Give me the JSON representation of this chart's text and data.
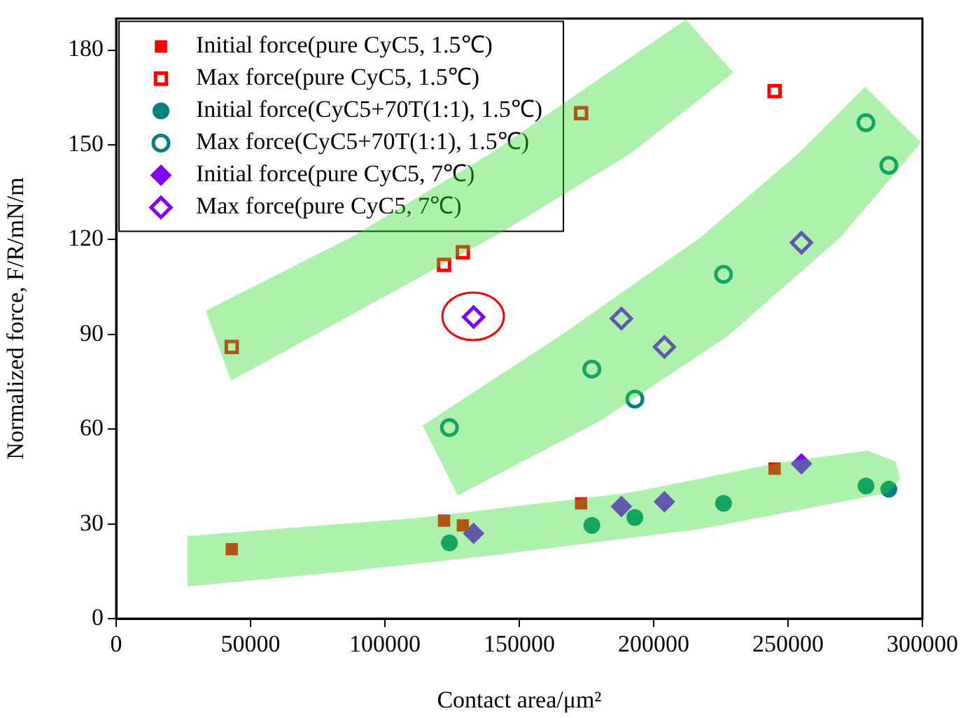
{
  "chart_data": {
    "type": "scatter",
    "xlabel": "Contact area/μm²",
    "ylabel": "Normalized force, F/R/mN/m",
    "xlim": [
      0,
      300000
    ],
    "xticks": [
      0,
      50000,
      100000,
      150000,
      200000,
      250000,
      300000
    ],
    "ylim": [
      0,
      190
    ],
    "yticks": [
      0,
      30,
      60,
      90,
      120,
      150,
      180
    ],
    "grid": false,
    "legend": "top left",
    "series": [
      {
        "name": "Initial force(pure CyC5, 1.5℃)",
        "color": "#ff0000",
        "marker": "square",
        "x": [
          43000,
          122000,
          129000,
          173000,
          245000
        ],
        "values": [
          22,
          31,
          29.5,
          36.5,
          47.5
        ]
      },
      {
        "name": "Max force(pure CyC5, 1.5℃)",
        "color": "#ff0000",
        "marker": "square-open",
        "x": [
          43000,
          122000,
          129000,
          173000,
          245000
        ],
        "values": [
          86,
          112,
          116,
          160,
          167
        ]
      },
      {
        "name": "Initial force(CyC5+70T(1:1), 1.5℃)",
        "color": "#008080",
        "marker": "circle",
        "x": [
          124000,
          177000,
          193000,
          226000,
          279000,
          287500
        ],
        "values": [
          24,
          29.5,
          32,
          36.5,
          42,
          41
        ]
      },
      {
        "name": "Max force(CyC5+70T(1:1), 1.5℃)",
        "color": "#008080",
        "marker": "circle-open",
        "x": [
          124000,
          177000,
          193000,
          226000,
          279000,
          287500
        ],
        "values": [
          60.5,
          79,
          69.5,
          109,
          157,
          143.5
        ]
      },
      {
        "name": "Initial force(pure CyC5, 7℃)",
        "color": "#8000ff",
        "marker": "diamond",
        "x": [
          133000,
          188000,
          204000,
          255000
        ],
        "values": [
          27,
          35.5,
          37,
          49
        ]
      },
      {
        "name": "Max force(pure CyC5, 7℃)",
        "color": "#8000ff",
        "marker": "diamond-open",
        "x": [
          133000,
          188000,
          204000,
          255000
        ],
        "values": [
          95.5,
          95,
          86,
          119
        ]
      }
    ]
  }
}
